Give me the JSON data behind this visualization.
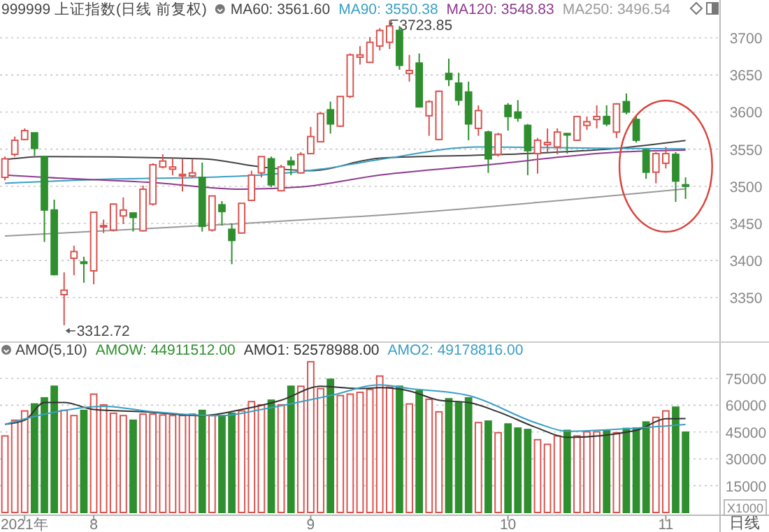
{
  "chart_data": [
    {
      "type": "candlestick",
      "title": "999999 上证指数(日线 前复权)",
      "legend": "top",
      "grid": "y",
      "tick_labels": "y",
      "categories": [
        null,
        null,
        null,
        null,
        null,
        null,
        null,
        null,
        null,
        null,
        null,
        null,
        null,
        null,
        null,
        null,
        null,
        null,
        null,
        null,
        null,
        null,
        null,
        null,
        null,
        null,
        null,
        null,
        null,
        null,
        null,
        null,
        null,
        null,
        null,
        null,
        null,
        null,
        null,
        null,
        null,
        null,
        null,
        null,
        null,
        null,
        null,
        null,
        null,
        null,
        null,
        null,
        null,
        null,
        null,
        null,
        null,
        null,
        null,
        null,
        null,
        null,
        null,
        null,
        null,
        null,
        null,
        null,
        null,
        null,
        null,
        null,
        null
      ],
      "ohlc": [
        [
          3512,
          3540,
          3508,
          3537
        ],
        [
          3543,
          3567,
          3540,
          3562
        ],
        [
          3563,
          3578,
          3562,
          3575
        ],
        [
          3572,
          3572,
          3541,
          3551
        ],
        [
          3540,
          3541,
          3425,
          3468
        ],
        [
          3468,
          3482,
          3380,
          3381
        ],
        [
          3354,
          3384,
          3312.72,
          3360
        ],
        [
          3403,
          3420,
          3380,
          3412
        ],
        [
          3398,
          3405,
          3370,
          3396
        ],
        [
          3386,
          3465,
          3368,
          3465
        ],
        [
          3446,
          3455,
          3437,
          3447
        ],
        [
          3441,
          3477,
          3439,
          3476
        ],
        [
          3460,
          3485,
          3449,
          3468
        ],
        [
          3464,
          3464,
          3439,
          3458
        ],
        [
          3440,
          3501,
          3439,
          3496
        ],
        [
          3476,
          3531,
          3474,
          3529
        ],
        [
          3526,
          3543,
          3524,
          3534
        ],
        [
          3523,
          3537,
          3515,
          3526
        ],
        [
          3514,
          3537,
          3493,
          3516
        ],
        [
          3514,
          3537,
          3512,
          3518
        ],
        [
          3512,
          3532,
          3439,
          3446
        ],
        [
          3441,
          3487,
          3439,
          3487
        ],
        [
          3475,
          3480,
          3447,
          3466
        ],
        [
          3442,
          3450,
          3395,
          3427
        ],
        [
          3437,
          3477,
          3436,
          3477
        ],
        [
          3481,
          3521,
          3480,
          3515
        ],
        [
          3518,
          3540,
          3512,
          3540
        ],
        [
          3537,
          3540,
          3499,
          3502
        ],
        [
          3494,
          3529,
          3493,
          3526
        ],
        [
          3534,
          3540,
          3515,
          3529
        ],
        [
          3518,
          3546,
          3517,
          3543
        ],
        [
          3544,
          3580,
          3543,
          3567
        ],
        [
          3560,
          3600,
          3559,
          3598
        ],
        [
          3603,
          3614,
          3571,
          3584
        ],
        [
          3581,
          3621,
          3580,
          3621
        ],
        [
          3621,
          3679,
          3619,
          3677
        ],
        [
          3674,
          3689,
          3664,
          3677
        ],
        [
          3667,
          3701,
          3666,
          3694
        ],
        [
          3689,
          3713,
          3683,
          3710
        ],
        [
          3694,
          3723.85,
          3685,
          3716
        ],
        [
          3710,
          3716,
          3657,
          3663
        ],
        [
          3652,
          3677,
          3641,
          3656
        ],
        [
          3666,
          3679,
          3606,
          3607
        ],
        [
          3595,
          3616,
          3568,
          3614
        ],
        [
          3563,
          3629,
          3562,
          3628
        ],
        [
          3652,
          3672,
          3635,
          3644
        ],
        [
          3639,
          3653,
          3609,
          3616
        ],
        [
          3627,
          3641,
          3562,
          3584
        ],
        [
          3578,
          3609,
          3568,
          3602
        ],
        [
          3573,
          3575,
          3518,
          3537
        ],
        [
          3543,
          3572,
          3540,
          3570
        ],
        [
          3609,
          3612,
          3575,
          3594
        ],
        [
          3600,
          3616,
          3587,
          3592
        ],
        [
          3582,
          3584,
          3515,
          3548
        ],
        [
          3544,
          3565,
          3517,
          3562
        ],
        [
          3556,
          3578,
          3546,
          3559
        ],
        [
          3553,
          3578,
          3543,
          3573
        ],
        [
          3571,
          3572,
          3544,
          3570
        ],
        [
          3562,
          3595,
          3561,
          3594
        ],
        [
          3582,
          3594,
          3576,
          3587
        ],
        [
          3590,
          3609,
          3578,
          3594
        ],
        [
          3594,
          3609,
          3581,
          3584
        ],
        [
          3573,
          3612,
          3565,
          3611
        ],
        [
          3614,
          3625,
          3597,
          3600
        ],
        [
          3590,
          3594,
          3559,
          3562
        ],
        [
          3549,
          3551,
          3510,
          3519
        ],
        [
          3519,
          3546,
          3504,
          3544
        ],
        [
          3531,
          3553,
          3524,
          3544
        ],
        [
          3543,
          3546,
          3479,
          3507
        ],
        [
          3502,
          3512,
          3483,
          3500
        ],
        null,
        null,
        null
      ],
      "colors": [
        "#d9534f",
        "#d9534f",
        "#d9534f",
        "#2f8f2f",
        "#2f8f2f",
        "#2f8f2f",
        "#d9534f",
        "#d9534f",
        "#2f8f2f",
        "#d9534f",
        "#d9534f",
        "#d9534f",
        "#d9534f",
        "#2f8f2f",
        "#d9534f",
        "#d9534f",
        "#d9534f",
        "#d9534f",
        "#d9534f",
        "#d9534f",
        "#2f8f2f",
        "#d9534f",
        "#2f8f2f",
        "#2f8f2f",
        "#d9534f",
        "#d9534f",
        "#d9534f",
        "#2f8f2f",
        "#d9534f",
        "#2f8f2f",
        "#d9534f",
        "#d9534f",
        "#d9534f",
        "#2f8f2f",
        "#d9534f",
        "#d9534f",
        "#d9534f",
        "#d9534f",
        "#d9534f",
        "#d9534f",
        "#2f8f2f",
        "#d9534f",
        "#2f8f2f",
        "#d9534f",
        "#d9534f",
        "#2f8f2f",
        "#2f8f2f",
        "#2f8f2f",
        "#d9534f",
        "#2f8f2f",
        "#d9534f",
        "#2f8f2f",
        "#2f8f2f",
        "#2f8f2f",
        "#d9534f",
        "#d9534f",
        "#d9534f",
        "#2f8f2f",
        "#d9534f",
        "#d9534f",
        "#d9534f",
        "#2f8f2f",
        "#d9534f",
        "#2f8f2f",
        "#2f8f2f",
        "#2f8f2f",
        "#d9534f",
        "#d9534f",
        "#2f8f2f",
        "#2f8f2f",
        null,
        null,
        null
      ],
      "series": [
        {
          "name": "MA60: 3561.60",
          "type": "line",
          "color": "#444444",
          "values": [
            3536,
            null,
            null,
            null,
            3540,
            null,
            null,
            null,
            null,
            null,
            null,
            null,
            null,
            null,
            null,
            null,
            null,
            null,
            null,
            null,
            3537,
            null,
            null,
            null,
            null,
            null,
            3526,
            null,
            null,
            null,
            null,
            3521,
            null,
            null,
            null,
            null,
            null,
            null,
            3538,
            null,
            null,
            null,
            null,
            null,
            null,
            null,
            null,
            null,
            null,
            null,
            null,
            3543,
            null,
            null,
            null,
            null,
            null,
            null,
            null,
            null,
            null,
            null,
            3551,
            null,
            null,
            null,
            null,
            null,
            null,
            3561.6,
            null,
            null,
            null
          ]
        },
        {
          "name": "MA90: 3550.38",
          "type": "line",
          "color": "#3a9fc4",
          "values": [
            3504,
            null,
            null,
            null,
            null,
            null,
            null,
            null,
            null,
            3509,
            null,
            null,
            null,
            null,
            null,
            null,
            null,
            null,
            null,
            null,
            3512,
            null,
            null,
            null,
            null,
            null,
            3515,
            null,
            null,
            null,
            null,
            null,
            3523,
            null,
            null,
            null,
            null,
            null,
            3536,
            null,
            null,
            null,
            null,
            null,
            null,
            null,
            null,
            null,
            3553,
            null,
            null,
            null,
            null,
            null,
            null,
            null,
            null,
            null,
            null,
            null,
            null,
            null,
            3551,
            null,
            null,
            null,
            null,
            null,
            null,
            3550.38,
            null,
            null,
            null
          ]
        },
        {
          "name": "MA120: 3548.83",
          "type": "line",
          "color": "#8e3a8e",
          "values": [
            3515,
            null,
            null,
            null,
            3512,
            null,
            null,
            null,
            null,
            null,
            null,
            null,
            null,
            null,
            null,
            3505,
            null,
            null,
            null,
            null,
            null,
            null,
            null,
            null,
            3496,
            null,
            null,
            null,
            null,
            null,
            3499,
            null,
            null,
            null,
            null,
            null,
            null,
            null,
            3515,
            null,
            null,
            null,
            null,
            null,
            null,
            null,
            null,
            null,
            null,
            3529,
            null,
            null,
            null,
            null,
            null,
            null,
            null,
            null,
            null,
            null,
            null,
            null,
            3546,
            null,
            null,
            null,
            null,
            null,
            null,
            3548.83,
            null,
            null,
            null
          ]
        },
        {
          "name": "MA250: 3496.54",
          "type": "line",
          "color": "#999999",
          "values": [
            3433,
            null,
            null,
            null,
            null,
            null,
            null,
            null,
            null,
            null,
            null,
            null,
            null,
            null,
            null,
            null,
            null,
            null,
            null,
            null,
            null,
            null,
            null,
            3449,
            null,
            null,
            null,
            null,
            null,
            null,
            null,
            null,
            null,
            null,
            null,
            null,
            null,
            null,
            3461,
            null,
            null,
            null,
            null,
            null,
            null,
            null,
            null,
            null,
            null,
            null,
            null,
            null,
            null,
            null,
            null,
            null,
            null,
            null,
            null,
            null,
            null,
            null,
            null,
            null,
            null,
            null,
            null,
            null,
            null,
            3496.54,
            null,
            null,
            null
          ]
        }
      ],
      "ylim": [
        3290,
        3751
      ],
      "yticks": [
        3350,
        3400,
        3450,
        3500,
        3550,
        3600,
        3650,
        3700
      ],
      "annotations": [
        "3723.85",
        "3312.72"
      ]
    },
    {
      "type": "bar",
      "title": "AMO(5,10)",
      "legend": "top",
      "grid": "y",
      "ylabel": "X1000",
      "categories": [
        null,
        null,
        "2021年",
        null,
        null,
        null,
        null,
        null,
        null,
        "8",
        null,
        null,
        null,
        null,
        null,
        null,
        null,
        null,
        null,
        null,
        null,
        null,
        null,
        null,
        null,
        null,
        null,
        null,
        null,
        null,
        null,
        "9",
        null,
        null,
        null,
        null,
        null,
        null,
        null,
        null,
        null,
        null,
        null,
        null,
        null,
        null,
        null,
        null,
        null,
        null,
        null,
        "10",
        null,
        null,
        null,
        null,
        null,
        null,
        null,
        null,
        null,
        null,
        null,
        null,
        null,
        null,
        null,
        "11",
        null,
        null,
        null,
        null,
        null
      ],
      "series": [
        {
          "name": "AMOW: 44911512.00",
          "type": "bar",
          "color": "#2f8f2f",
          "colors": [
            "#d9534f",
            "#d9534f",
            "#d9534f",
            "#2f8f2f",
            "#2f8f2f",
            "#2f8f2f",
            "#d9534f",
            "#d9534f",
            "#2f8f2f",
            "#d9534f",
            "#d9534f",
            "#d9534f",
            "#d9534f",
            "#2f8f2f",
            "#d9534f",
            "#d9534f",
            "#d9534f",
            "#d9534f",
            "#d9534f",
            "#d9534f",
            "#2f8f2f",
            "#d9534f",
            "#2f8f2f",
            "#2f8f2f",
            "#d9534f",
            "#d9534f",
            "#d9534f",
            "#2f8f2f",
            "#d9534f",
            "#2f8f2f",
            "#d9534f",
            "#d9534f",
            "#d9534f",
            "#2f8f2f",
            "#d9534f",
            "#d9534f",
            "#d9534f",
            "#d9534f",
            "#d9534f",
            "#d9534f",
            "#2f8f2f",
            "#d9534f",
            "#2f8f2f",
            "#d9534f",
            "#d9534f",
            "#2f8f2f",
            "#2f8f2f",
            "#2f8f2f",
            "#d9534f",
            "#2f8f2f",
            "#d9534f",
            "#2f8f2f",
            "#2f8f2f",
            "#2f8f2f",
            "#d9534f",
            "#d9534f",
            "#d9534f",
            "#2f8f2f",
            "#d9534f",
            "#d9534f",
            "#d9534f",
            "#2f8f2f",
            "#d9534f",
            "#2f8f2f",
            "#2f8f2f",
            "#2f8f2f",
            "#d9534f",
            "#d9534f",
            "#2f8f2f",
            "#2f8f2f",
            null,
            null,
            null
          ],
          "values": [
            42800,
            51600,
            56800,
            60700,
            64100,
            70600,
            57100,
            54200,
            57100,
            66200,
            60200,
            55500,
            54200,
            51600,
            55000,
            55000,
            54500,
            54200,
            54200,
            55000,
            57100,
            54200,
            54200,
            55500,
            56800,
            62000,
            60200,
            62800,
            60200,
            70600,
            70600,
            84300,
            69300,
            74500,
            65400,
            66200,
            67200,
            68800,
            76300,
            70100,
            70600,
            60700,
            68000,
            63300,
            56300,
            63600,
            61500,
            64100,
            50300,
            51100,
            44600,
            49500,
            47200,
            46400,
            40700,
            38100,
            42800,
            45900,
            42800,
            45100,
            45100,
            45900,
            44600,
            47000,
            47200,
            50600,
            53200,
            56800,
            58900,
            44912,
            null,
            null,
            null
          ]
        },
        {
          "name": "AMO1: 52578988.00",
          "type": "line",
          "color": "#333333",
          "values": [
            49300,
            null,
            51600,
            null,
            61500,
            null,
            61500,
            null,
            null,
            57600,
            null,
            null,
            null,
            null,
            56300,
            null,
            null,
            null,
            null,
            null,
            54200,
            null,
            null,
            null,
            57600,
            null,
            null,
            null,
            62800,
            null,
            null,
            null,
            70600,
            null,
            null,
            null,
            69300,
            null,
            69800,
            null,
            null,
            68000,
            null,
            null,
            62800,
            null,
            null,
            61500,
            null,
            null,
            56300,
            null,
            null,
            null,
            47200,
            null,
            null,
            42000,
            null,
            null,
            null,
            null,
            null,
            null,
            45900,
            null,
            null,
            52400,
            null,
            52579,
            null,
            null,
            null
          ]
        },
        {
          "name": "AMO2: 49178816.00",
          "type": "line",
          "color": "#3a9fc4",
          "values": [
            49300,
            null,
            null,
            null,
            55000,
            null,
            null,
            null,
            null,
            null,
            59400,
            null,
            null,
            null,
            null,
            56300,
            null,
            null,
            null,
            null,
            null,
            null,
            54200,
            null,
            null,
            null,
            57600,
            null,
            null,
            null,
            null,
            null,
            null,
            65400,
            null,
            null,
            null,
            null,
            71400,
            null,
            null,
            69300,
            null,
            null,
            null,
            null,
            null,
            65400,
            null,
            null,
            null,
            null,
            null,
            null,
            49800,
            null,
            null,
            45400,
            null,
            null,
            null,
            null,
            null,
            null,
            47200,
            null,
            null,
            null,
            null,
            49179,
            null,
            null,
            null
          ]
        }
      ],
      "ylim": [
        0,
        95300
      ],
      "yticks": [
        15000,
        30000,
        45000,
        60000,
        75000
      ],
      "annotations": [
        "日线"
      ]
    }
  ]
}
